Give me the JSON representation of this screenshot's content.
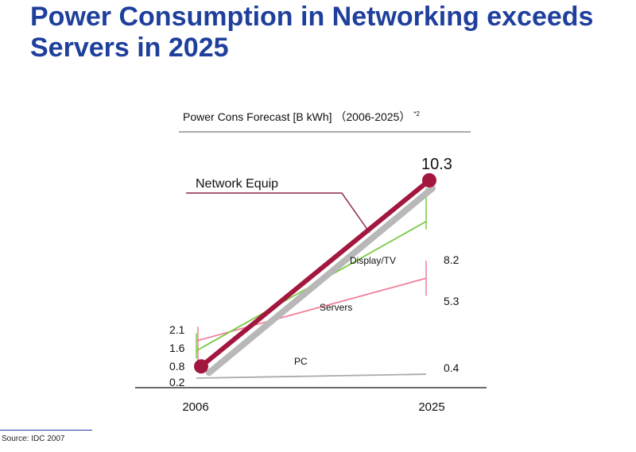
{
  "slide": {
    "title_line1": "Power Consumption in Networking exceeds",
    "title_line2": "Servers in 2025",
    "source": "Source: IDC 2007"
  },
  "chart_data": {
    "type": "line",
    "title": "Power Cons Forecast [B kWh] （2006-2025）",
    "title_note": "*2",
    "x": [
      "2006",
      "2025"
    ],
    "xlabel": "",
    "ylabel": "",
    "ylim": [
      0,
      11
    ],
    "grid": false,
    "series": [
      {
        "name": "Network Equip",
        "values": [
          0.8,
          10.3
        ],
        "color": "#a3173f",
        "label_start": "0.8",
        "label_end": "10.3"
      },
      {
        "name": "Display/TV",
        "values": [
          1.6,
          8.2
        ],
        "color": "#7ac943",
        "label_start": "1.6",
        "label_end": "8.2"
      },
      {
        "name": "Servers",
        "values": [
          2.1,
          5.3
        ],
        "color": "#f08098",
        "label_start": "2.1",
        "label_end": "5.3"
      },
      {
        "name": "PC",
        "values": [
          0.2,
          0.4
        ],
        "color": "#aaaaaa",
        "label_start": "0.2",
        "label_end": "0.4"
      }
    ]
  }
}
